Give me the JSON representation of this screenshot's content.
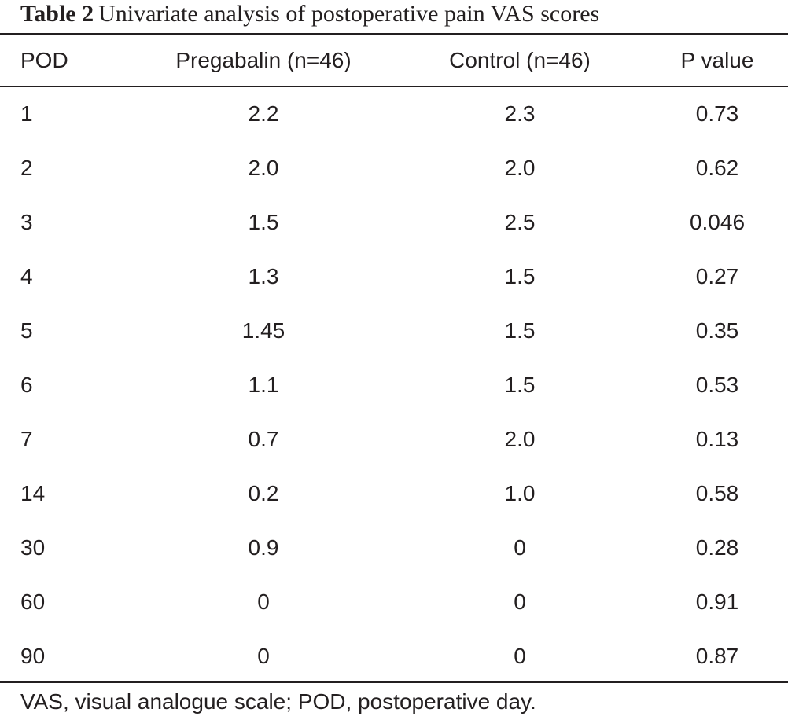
{
  "caption": {
    "label": "Table 2",
    "title": "Univariate analysis of postoperative pain VAS scores"
  },
  "table": {
    "headers": [
      "POD",
      "Pregabalin (n=46)",
      "Control (n=46)",
      "P value"
    ],
    "rows": [
      [
        "1",
        "2.2",
        "2.3",
        "0.73"
      ],
      [
        "2",
        "2.0",
        "2.0",
        "0.62"
      ],
      [
        "3",
        "1.5",
        "2.5",
        "0.046"
      ],
      [
        "4",
        "1.3",
        "1.5",
        "0.27"
      ],
      [
        "5",
        "1.45",
        "1.5",
        "0.35"
      ],
      [
        "6",
        "1.1",
        "1.5",
        "0.53"
      ],
      [
        "7",
        "0.7",
        "2.0",
        "0.13"
      ],
      [
        "14",
        "0.2",
        "1.0",
        "0.58"
      ],
      [
        "30",
        "0.9",
        "0",
        "0.28"
      ],
      [
        "60",
        "0",
        "0",
        "0.91"
      ],
      [
        "90",
        "0",
        "0",
        "0.87"
      ]
    ]
  },
  "footnote": "VAS, visual analogue scale; POD, postoperative day."
}
